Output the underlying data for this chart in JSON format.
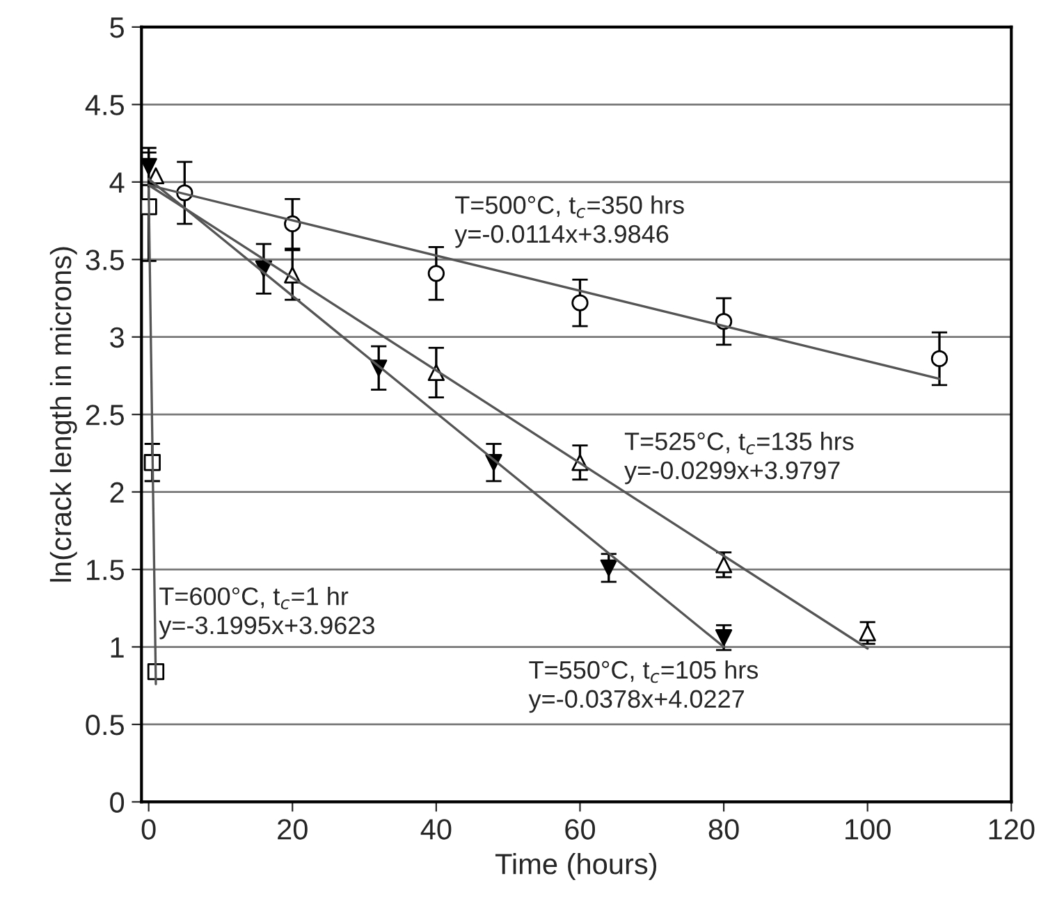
{
  "chart_data": {
    "type": "scatter",
    "xlabel": "Time (hours)",
    "ylabel": "ln(crack length in microns)",
    "xlim": [
      -1,
      120
    ],
    "xticks": [
      0,
      20,
      40,
      60,
      80,
      100,
      120
    ],
    "ylim": [
      0,
      5
    ],
    "yticks": [
      0,
      0.5,
      1,
      1.5,
      2,
      2.5,
      3,
      3.5,
      4,
      4.5,
      5
    ],
    "grid": "y",
    "series": [
      {
        "type": "scatter",
        "marker": "circle",
        "color": "#ffffff",
        "x": [
          5,
          20,
          40,
          60,
          80,
          110
        ],
        "values": [
          3.93,
          3.73,
          3.41,
          3.22,
          3.1,
          2.86
        ],
        "errors": [
          0.2,
          0.16,
          0.17,
          0.15,
          0.15,
          0.17
        ]
      },
      {
        "type": "scatter",
        "marker": "triangle",
        "color": "#ffffff",
        "x": [
          1,
          20,
          40,
          60,
          80,
          100
        ],
        "values": [
          4.04,
          3.4,
          2.77,
          2.19,
          1.53,
          1.09
        ],
        "errors": [
          null,
          0.16,
          0.16,
          0.11,
          0.08,
          0.07
        ]
      },
      {
        "type": "scatter",
        "marker": "triangle_down",
        "color": "#000000",
        "x": [
          0,
          16,
          32,
          48,
          64,
          80
        ],
        "values": [
          4.1,
          3.44,
          2.8,
          2.19,
          1.51,
          1.06
        ],
        "errors": [
          0.12,
          0.16,
          0.14,
          0.12,
          0.09,
          0.08
        ]
      },
      {
        "type": "scatter",
        "marker": "square",
        "color": "#ffffff",
        "x": [
          0,
          0.5,
          1
        ],
        "values": [
          3.84,
          2.19,
          0.84
        ],
        "errors": [
          0.35,
          0.12,
          null
        ]
      },
      {
        "type": "line",
        "color": "#555555",
        "x": [
          0,
          110
        ],
        "values": [
          3.98,
          2.73
        ]
      },
      {
        "type": "line",
        "color": "#555555",
        "x": [
          0,
          100
        ],
        "values": [
          3.98,
          0.99
        ]
      },
      {
        "type": "line",
        "color": "#555555",
        "x": [
          0,
          80
        ],
        "values": [
          4.02,
          1.0
        ]
      },
      {
        "type": "line",
        "color": "#555555",
        "x": [
          0,
          1
        ],
        "values": [
          3.96,
          0.76
        ]
      }
    ],
    "annotations": [
      "T=500°C, t$_{c}$=350 hrs\ny=-0.0114x+3.9846",
      "T=525°C, t$_{c}$=135 hrs\ny=-0.0299x+3.9797",
      "T=600°C, t$_{c}$=1 hr\ny=-3.1995x+3.9623",
      "T=550°C, t$_{c}$=105 hrs\ny=-0.0378x+4.0227"
    ]
  }
}
